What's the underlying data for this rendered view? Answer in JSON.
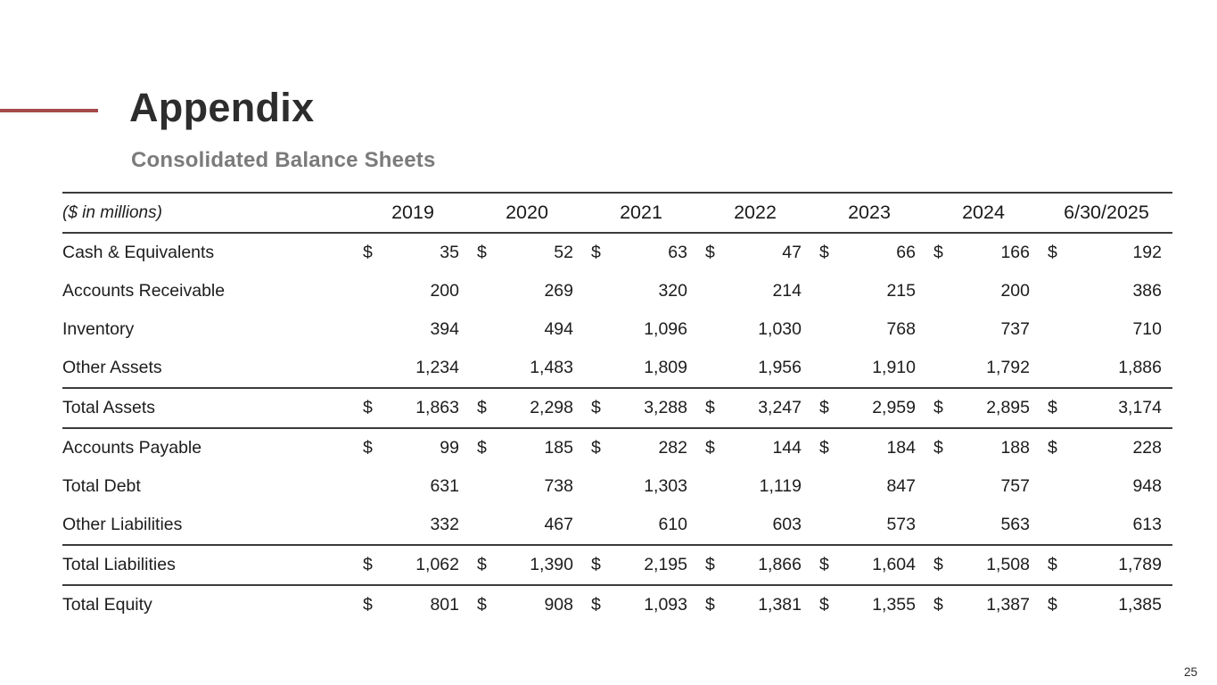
{
  "slide": {
    "title": "Appendix",
    "subtitle": "Consolidated Balance Sheets",
    "page_number": "25",
    "accent_color": "#a54a4a"
  },
  "chart_data": {
    "type": "table",
    "units_label": "($ in millions)",
    "currency_symbol": "$",
    "columns": [
      "2019",
      "2020",
      "2021",
      "2022",
      "2023",
      "2024",
      "6/30/2025"
    ],
    "rows": [
      {
        "label": "Cash & Equivalents",
        "dollar_sign": true,
        "rule_below": false,
        "values": [
          "35",
          "52",
          "63",
          "47",
          "66",
          "166",
          "192"
        ]
      },
      {
        "label": "Accounts Receivable",
        "dollar_sign": false,
        "rule_below": false,
        "values": [
          "200",
          "269",
          "320",
          "214",
          "215",
          "200",
          "386"
        ]
      },
      {
        "label": "Inventory",
        "dollar_sign": false,
        "rule_below": false,
        "values": [
          "394",
          "494",
          "1,096",
          "1,030",
          "768",
          "737",
          "710"
        ]
      },
      {
        "label": "Other Assets",
        "dollar_sign": false,
        "rule_below": true,
        "values": [
          "1,234",
          "1,483",
          "1,809",
          "1,956",
          "1,910",
          "1,792",
          "1,886"
        ]
      },
      {
        "label": "Total Assets",
        "dollar_sign": true,
        "rule_below": true,
        "values": [
          "1,863",
          "2,298",
          "3,288",
          "3,247",
          "2,959",
          "2,895",
          "3,174"
        ]
      },
      {
        "label": "Accounts Payable",
        "dollar_sign": true,
        "rule_below": false,
        "values": [
          "99",
          "185",
          "282",
          "144",
          "184",
          "188",
          "228"
        ]
      },
      {
        "label": "Total Debt",
        "dollar_sign": false,
        "rule_below": false,
        "values": [
          "631",
          "738",
          "1,303",
          "1,119",
          "847",
          "757",
          "948"
        ]
      },
      {
        "label": "Other Liabilities",
        "dollar_sign": false,
        "rule_below": true,
        "values": [
          "332",
          "467",
          "610",
          "603",
          "573",
          "563",
          "613"
        ]
      },
      {
        "label": "Total Liabilities",
        "dollar_sign": true,
        "rule_below": true,
        "values": [
          "1,062",
          "1,390",
          "2,195",
          "1,866",
          "1,604",
          "1,508",
          "1,789"
        ]
      },
      {
        "label": "Total Equity",
        "dollar_sign": true,
        "rule_below": false,
        "values": [
          "801",
          "908",
          "1,093",
          "1,381",
          "1,355",
          "1,387",
          "1,385"
        ]
      }
    ]
  }
}
